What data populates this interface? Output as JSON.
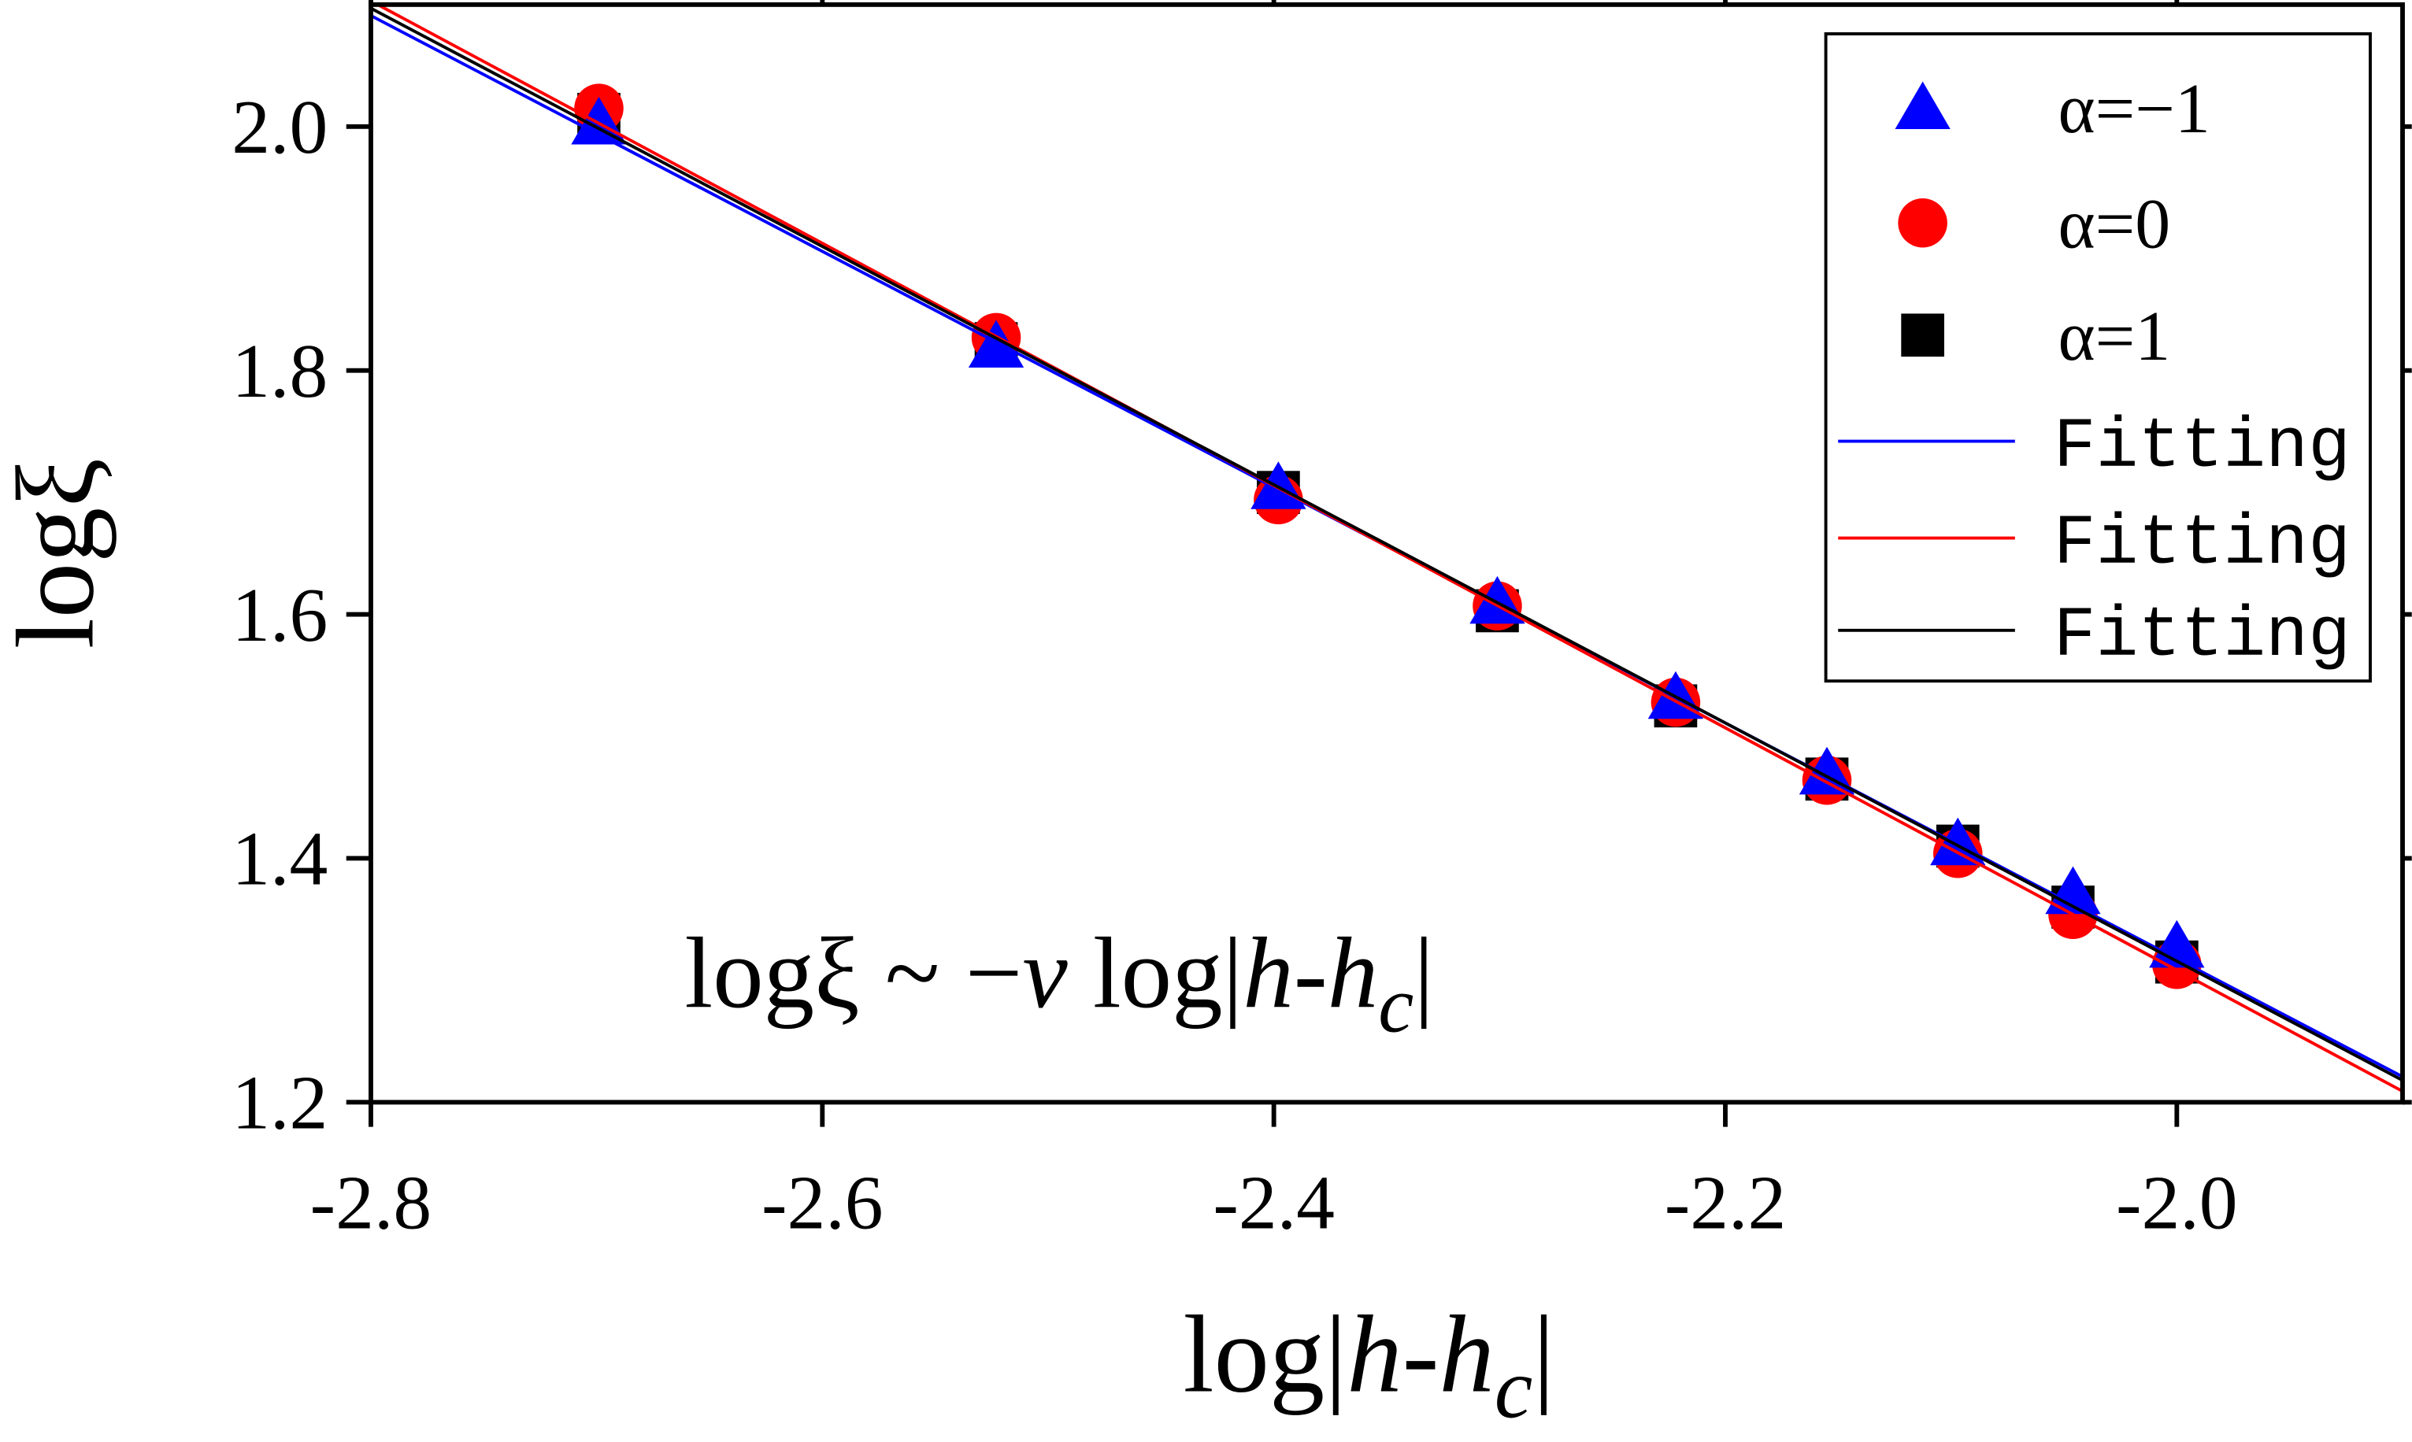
{
  "chart_data": {
    "type": "scatter",
    "x_label": [
      "log|",
      "h",
      "-",
      "h",
      "c",
      "|"
    ],
    "y_label": "logξ",
    "annotation": [
      "logξ ~ −",
      "ν",
      " log|",
      "h",
      "-",
      "h",
      "c",
      "|"
    ],
    "xlim": [
      -2.8,
      -1.9
    ],
    "ylim": [
      1.2,
      2.1
    ],
    "xticks": [
      -2.8,
      -2.6,
      -2.4,
      -2.2,
      {
        "value": -2,
        "label": "-2.0"
      }
    ],
    "yticks": [
      1.2,
      1.4,
      1.6,
      1.8,
      {
        "value": 2,
        "label": "2.0"
      }
    ],
    "legend": "top-right",
    "series": [
      {
        "name": "α=−1",
        "color": "#0000ff",
        "marker": "triangle",
        "x": [
          -2.699,
          -2.523,
          -2.398,
          -2.301,
          -2.222,
          -2.155,
          -2.097,
          -2.046,
          -2.0
        ],
        "values": [
          2.003,
          1.82,
          1.704,
          1.61,
          1.532,
          1.47,
          1.412,
          1.372,
          1.328
        ]
      },
      {
        "name": "α=0",
        "color": "#ff0000",
        "marker": "circle",
        "x": [
          -2.699,
          -2.523,
          -2.398,
          -2.301,
          -2.222,
          -2.155,
          -2.097,
          -2.046,
          -2.0
        ],
        "values": [
          2.015,
          1.827,
          1.694,
          1.607,
          1.528,
          1.464,
          1.404,
          1.354,
          1.313
        ]
      },
      {
        "name": "α=1",
        "color": "#000000",
        "marker": "square",
        "x": [
          -2.699,
          -2.523,
          -2.398,
          -2.301,
          -2.222,
          -2.155,
          -2.097,
          -2.046,
          -2.0
        ],
        "values": [
          2.01,
          1.822,
          1.7,
          1.603,
          1.525,
          1.465,
          1.41,
          1.36,
          1.315
        ]
      },
      {
        "name": "Fitting",
        "color": "#0000ff",
        "marker": "line",
        "x": [
          -2.8,
          -1.9
        ],
        "values": [
          2.091,
          1.221
        ]
      },
      {
        "name": "Fitting",
        "color": "#ff0000",
        "marker": "line",
        "x": [
          -2.8,
          -1.9
        ],
        "values": [
          2.103,
          1.209
        ]
      },
      {
        "name": "Fitting",
        "color": "#000000",
        "marker": "line",
        "x": [
          -2.8,
          -1.9
        ],
        "values": [
          2.097,
          1.218
        ]
      }
    ]
  }
}
